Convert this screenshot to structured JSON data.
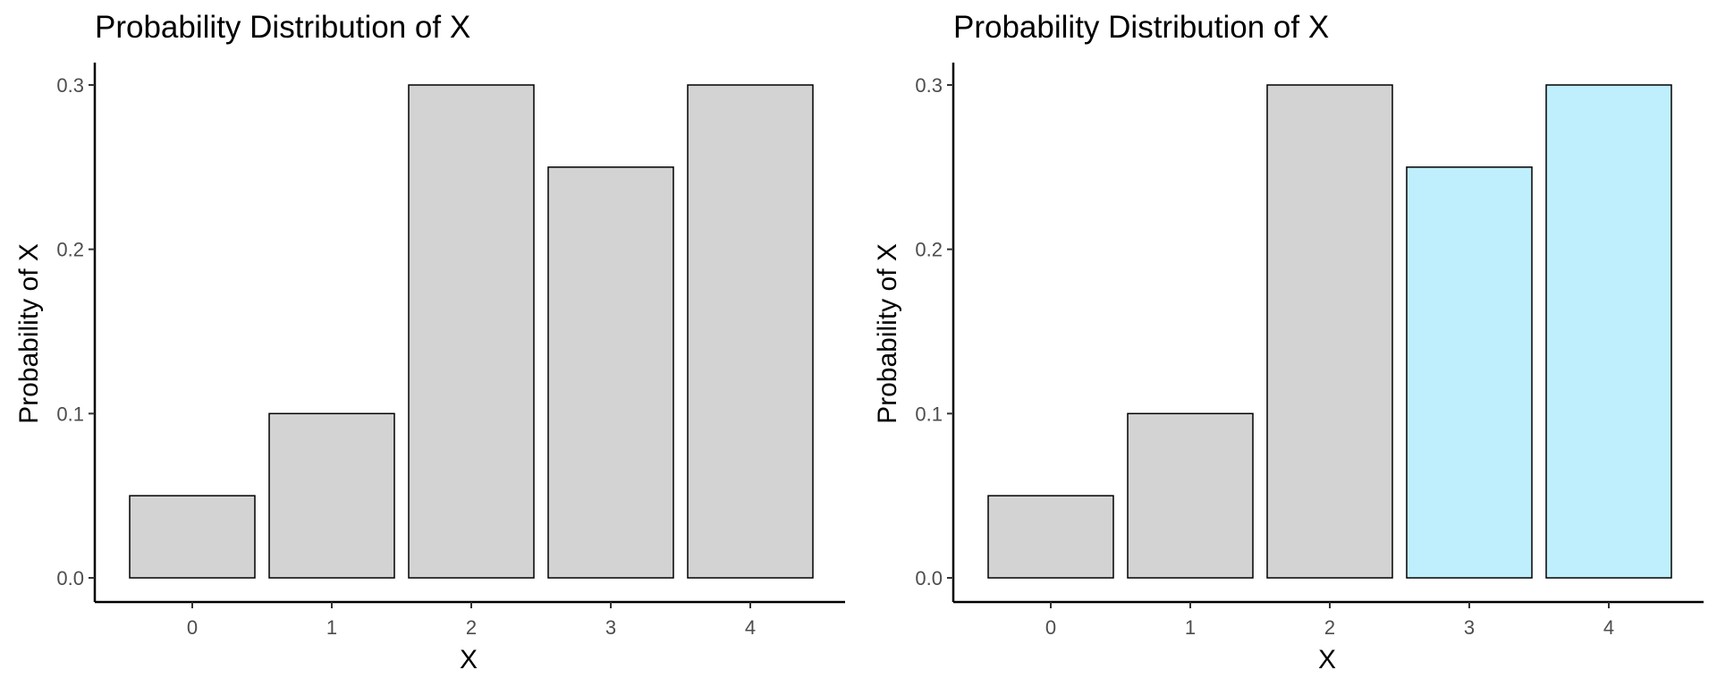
{
  "chart_data": [
    {
      "type": "bar",
      "title": "Probability Distribution of X",
      "xlabel": "X",
      "ylabel": "Probability of X",
      "categories": [
        "0",
        "1",
        "2",
        "3",
        "4"
      ],
      "values": [
        0.05,
        0.1,
        0.3,
        0.25,
        0.3
      ],
      "bar_colors": [
        "#d3d3d3",
        "#d3d3d3",
        "#d3d3d3",
        "#d3d3d3",
        "#d3d3d3"
      ],
      "y_ticks": [
        "0.0",
        "0.1",
        "0.2",
        "0.3"
      ],
      "ylim": [
        0,
        0.3
      ],
      "grid": false,
      "legend": "none"
    },
    {
      "type": "bar",
      "title": "Probability Distribution of X",
      "xlabel": "X",
      "ylabel": "Probability of X",
      "categories": [
        "0",
        "1",
        "2",
        "3",
        "4"
      ],
      "values": [
        0.05,
        0.1,
        0.3,
        0.25,
        0.3
      ],
      "bar_colors": [
        "#d3d3d3",
        "#d3d3d3",
        "#d3d3d3",
        "#bfeefd",
        "#bfeefd"
      ],
      "y_ticks": [
        "0.0",
        "0.1",
        "0.2",
        "0.3"
      ],
      "ylim": [
        0,
        0.3
      ],
      "grid": false,
      "legend": "none"
    }
  ]
}
